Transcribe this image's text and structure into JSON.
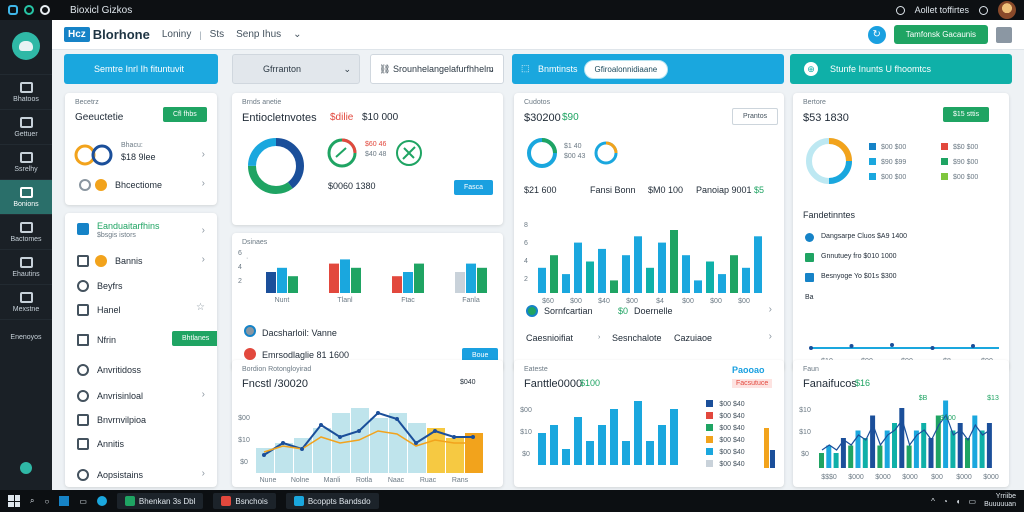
{
  "os": {
    "window_title": "Bioxicl Gizkos",
    "tray_text": "Aollet toffirtes"
  },
  "header": {
    "badge": "Hcz",
    "brand": "Blorhone",
    "nav1": "Loniny",
    "nav2": "Sts",
    "nav3": "Senp Ihus",
    "cta": "Tamfonsk Gacaunis"
  },
  "sidebar": [
    {
      "label": "Bhatoos"
    },
    {
      "label": "Gettuer"
    },
    {
      "label": "Ssrelhy"
    },
    {
      "label": "Bonions"
    },
    {
      "label": "Bactomes"
    },
    {
      "label": "Ehautins"
    },
    {
      "label": "Mexstne"
    },
    {
      "label": "Enenoyos"
    }
  ],
  "toolbar": {
    "b1": "Semtre Inrl Ih fituntuvit",
    "b2": "Gfrranton",
    "b3": "Srounhelangelafurfhhelm",
    "b4": "Bnmtinsts",
    "b4_pill": "Gfiroalonnidiaane",
    "b5": "Stunfe Inunts U fhoomtcs"
  },
  "card_a": {
    "small": "Becetrz",
    "title": "Geeuctetie",
    "btn": "Cfl fhbs",
    "stat1": "Bhacu:",
    "stat2": "$18 9lee",
    "row": "Bhcectiome"
  },
  "card_b": {
    "small": "Brnds anetie",
    "title": "Entiocletnvotes",
    "title_red": "$dilie",
    "amount": "$10 000",
    "legend1": "$60 46",
    "legend2": "$40 48",
    "footer": "$0060 1380",
    "btn": "Fasca"
  },
  "card_c": {
    "small": "Cudotos",
    "title": "$30200",
    "title_green": "$90",
    "l1": "$1 40",
    "l2": "$00 43",
    "h1": "$21 600",
    "h2": "Fansi Bonn",
    "h3": "$M0 100",
    "h4": "Panoiap 9001",
    "h4_green": "$5",
    "btn": "Prantos"
  },
  "card_d": {
    "small": "Bertore",
    "title": "$53 1830",
    "btn": "$15 sttis",
    "legend": [
      "$00 $00",
      "$90 $99",
      "$00 $00",
      "$$0 $00",
      "$90 $00",
      "$00 $00"
    ]
  },
  "card_e": {
    "items": [
      {
        "label": "Eanduaitarfhins",
        "sub": "$bsgis istors"
      },
      {
        "label": "Bannis"
      },
      {
        "label": "Beyfrs"
      },
      {
        "label": "Hanel"
      },
      {
        "label": "Nfrin",
        "btn": "Bhtlanes"
      },
      {
        "label": "Anvritidoss"
      },
      {
        "label": "Anvrisinloal"
      },
      {
        "label": "Bnvrnvilpioa"
      },
      {
        "label": "Annitis"
      },
      {
        "label": "Aopsistains"
      }
    ]
  },
  "card_f": {
    "small": "Dsinaes",
    "row1": "Dacsharloil: Vanne",
    "row2": "Emrsodlaglie 81 1600",
    "btn": "Boue",
    "ticks": [
      "Nunt",
      "Tlanl",
      "Ftac",
      "Fanla"
    ]
  },
  "card_g": {
    "row1": "Sornfcartian",
    "row1_green": "$0",
    "row1b": "Doernelle",
    "row2": "Caesnioifiat",
    "row2b": "Sesnchalote",
    "row2c": "Cazuiaoe",
    "ticks": [
      "$60",
      "$00",
      "$40",
      "$00",
      "$4",
      "$00",
      "$00",
      "$00"
    ]
  },
  "card_h": {
    "title": "Fandetinntes",
    "rows": [
      "Dangsarpe Cluos $A9 1400",
      "Gnnutuey fro $010 1000",
      "Besnyoge Yo $01s $300"
    ],
    "tail": "Ba",
    "ticks": [
      "$10",
      "$00",
      "$00",
      "$8",
      "$00"
    ]
  },
  "card_i": {
    "small": "Bordion Rotongloyirad",
    "title": "Fncstl /30020",
    "stat": "$040",
    "ticks": [
      "Nune",
      "Nolne",
      "Manli",
      "Rotla",
      "Naac",
      "Ruac",
      "Rans"
    ]
  },
  "card_j": {
    "small": "Eateste",
    "title": "Fanttle0000",
    "title_green": "$100",
    "badge": "Paooao",
    "badge2": "Facsutuce",
    "legend": [
      "$00 $40",
      "$00 $40",
      "$00 $40",
      "$00 $40",
      "$00 $40",
      "$00 $40"
    ],
    "ticks": [
      "$06",
      "$50",
      "$00",
      "$10",
      "$00",
      "$00",
      "$00",
      "$00"
    ]
  },
  "card_k": {
    "small": "Faun",
    "title": "Fanaifucos",
    "title_green": "$16",
    "ann1": "$B",
    "ann2": "$100",
    "ann3": "$13",
    "ticks": [
      "$$$0",
      "$000",
      "$000",
      "$000",
      "$00",
      "$000",
      "$000"
    ]
  },
  "taskbar": {
    "t1": "Bhenkan 3s Dbl",
    "t2": "Bsnchois",
    "t3": "Bcoppts Bandsdo",
    "clock1": "Yrriibe",
    "clock2": "Buuuuuan"
  },
  "colors": {
    "accent": "#1aa7de",
    "green": "#1fa463",
    "teal": "#0fb0a8",
    "orange": "#f2a31c",
    "red": "#e2483d",
    "navy": "#1b4f9a"
  },
  "chart_data": [
    {
      "type": "bar",
      "id": "card_f",
      "categories": [
        "Nunt",
        "Tlanl",
        "Ftac",
        "Fanla"
      ],
      "series": [
        {
          "values": [
            5,
            7,
            4,
            5
          ]
        },
        {
          "values": [
            6,
            8,
            5,
            7
          ]
        },
        {
          "values": [
            4,
            6,
            7,
            6
          ]
        }
      ]
    },
    {
      "type": "bar",
      "id": "card_c",
      "values": [
        4,
        6,
        3,
        8,
        5,
        7,
        2,
        6,
        9,
        4,
        8,
        10,
        6,
        2,
        5,
        3,
        6,
        4,
        9
      ]
    },
    {
      "type": "line",
      "id": "card_h",
      "values": [
        3,
        3,
        3,
        3.2,
        3,
        3,
        3.3,
        3,
        3,
        3,
        3.1,
        3,
        3.2,
        3
      ]
    },
    {
      "type": "area",
      "id": "card_i",
      "values": [
        5,
        6,
        7,
        9,
        12,
        13,
        11,
        12,
        10,
        9,
        7,
        8
      ],
      "line": [
        3,
        5,
        4,
        8,
        6,
        7,
        10,
        9,
        5,
        7,
        6,
        6
      ]
    },
    {
      "type": "bar",
      "id": "card_j",
      "values": [
        4,
        5,
        2,
        6,
        3,
        5,
        7,
        3,
        8,
        3,
        5,
        7
      ]
    },
    {
      "type": "bar",
      "id": "card_k",
      "values": [
        2,
        3,
        2,
        4,
        3,
        5,
        4,
        7,
        3,
        5,
        6,
        8,
        3,
        5,
        6,
        4,
        7,
        9,
        5,
        6,
        4,
        7,
        5,
        6
      ]
    },
    {
      "type": "pie",
      "id": "card_b_donut",
      "values": [
        40,
        35,
        25
      ]
    },
    {
      "type": "pie",
      "id": "card_d_donut",
      "values": [
        30,
        25,
        25,
        20
      ]
    }
  ]
}
